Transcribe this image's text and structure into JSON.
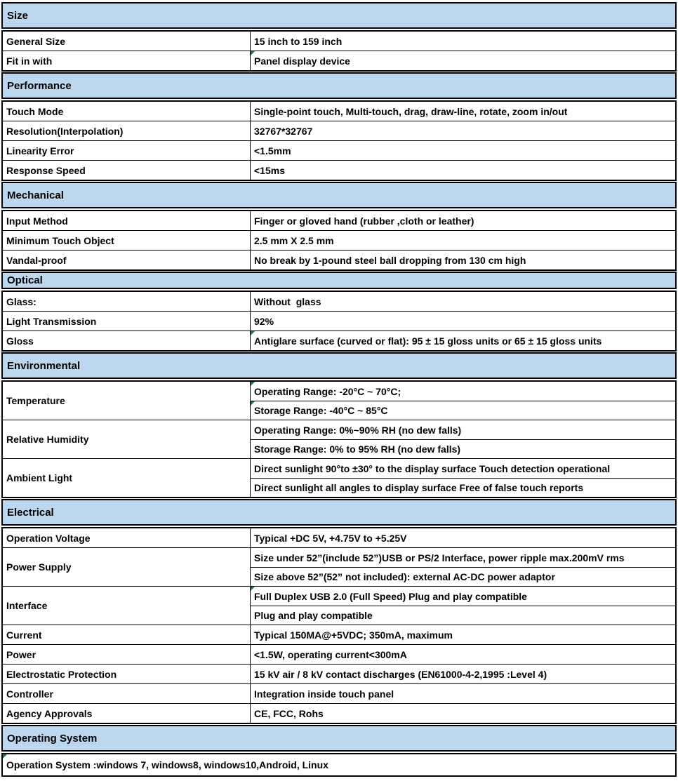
{
  "colors": {
    "section_header_bg": "#BDD7EE",
    "border": "#000000",
    "cell_flag_green": "#217346"
  },
  "table": {
    "sections": [
      {
        "header": "Size",
        "rows": [
          {
            "label": "General Size",
            "values": [
              "15 inch to 159 inch"
            ]
          },
          {
            "label": "Fit in with",
            "values": [
              "Panel display device"
            ],
            "flags": [
              true
            ]
          }
        ]
      },
      {
        "header": "Performance",
        "rows": [
          {
            "label": "Touch Mode",
            "values": [
              "Single-point touch, Multi-touch, drag, draw-line, rotate, zoom in/out"
            ]
          },
          {
            "label": "Resolution(Interpolation)",
            "values": [
              "32767*32767"
            ]
          },
          {
            "label": "Linearity Error",
            "values": [
              "<1.5mm"
            ]
          },
          {
            "label": "Response Speed",
            "values": [
              "<15ms"
            ]
          }
        ]
      },
      {
        "header": "Mechanical",
        "rows": [
          {
            "label": "Input Method",
            "values": [
              "Finger or gloved hand (rubber ,cloth or leather)"
            ]
          },
          {
            "label": "Minimum Touch Object",
            "values": [
              "2.5 mm X 2.5 mm"
            ]
          },
          {
            "label": "Vandal-proof",
            "values": [
              "No break by 1-pound steel ball dropping from 130 cm high"
            ]
          }
        ]
      },
      {
        "header": "Optical",
        "compact": true,
        "rows": [
          {
            "label": "Glass:",
            "values": [
              "Without  glass"
            ]
          },
          {
            "label": "Light Transmission",
            "values": [
              "92%"
            ]
          },
          {
            "label": "Gloss",
            "values": [
              "Antiglare surface (curved or flat): 95 ± 15 gloss units or 65 ± 15 gloss units"
            ],
            "flags": [
              true
            ]
          }
        ]
      },
      {
        "header": "Environmental",
        "rows": [
          {
            "label": "Temperature",
            "values": [
              "Operating Range: -20°C ~ 70°C;",
              "Storage Range: -40°C ~ 85°C"
            ],
            "flags": [
              true,
              true
            ]
          },
          {
            "label": "Relative Humidity",
            "values": [
              "Operating Range: 0%~90% RH (no dew falls)",
              "Storage Range: 0% to 95% RH (no dew falls)"
            ]
          },
          {
            "label": "Ambient Light",
            "values": [
              "Direct sunlight 90°to ±30° to the display surface Touch detection operational",
              "Direct sunlight all angles to display surface Free of false touch reports"
            ]
          }
        ]
      },
      {
        "header": "Electrical",
        "rows": [
          {
            "label": "Operation Voltage",
            "values": [
              "Typical +DC 5V, +4.75V to +5.25V"
            ]
          },
          {
            "label": "Power Supply",
            "values": [
              "Size under 52”(include 52”)USB or PS/2 Interface, power ripple max.200mV rms",
              "Size above 52”(52” not included): external AC-DC power adaptor"
            ]
          },
          {
            "label": "Interface",
            "values": [
              "Full Duplex USB 2.0 (Full Speed) Plug and play compatible",
              "Plug and play compatible"
            ],
            "flags": [
              true,
              false
            ]
          },
          {
            "label": "Current",
            "values": [
              "Typical 150MA@+5VDC; 350mA, maximum"
            ]
          },
          {
            "label": "Power",
            "values": [
              "<1.5W, operating current<300mA"
            ]
          },
          {
            "label": "Electrostatic Protection",
            "values": [
              "15 kV air / 8 kV contact discharges (EN61000-4-2,1995 :Level 4)"
            ]
          },
          {
            "label": "Controller",
            "values": [
              "Integration inside touch panel"
            ]
          },
          {
            "label": "Agency Approvals",
            "values": [
              "CE, FCC, Rohs"
            ]
          }
        ]
      },
      {
        "header": "Operating System",
        "rows": [
          {
            "full": "Operation System :windows 7, windows8, windows10,Android, Linux",
            "flag": true
          }
        ]
      }
    ]
  }
}
